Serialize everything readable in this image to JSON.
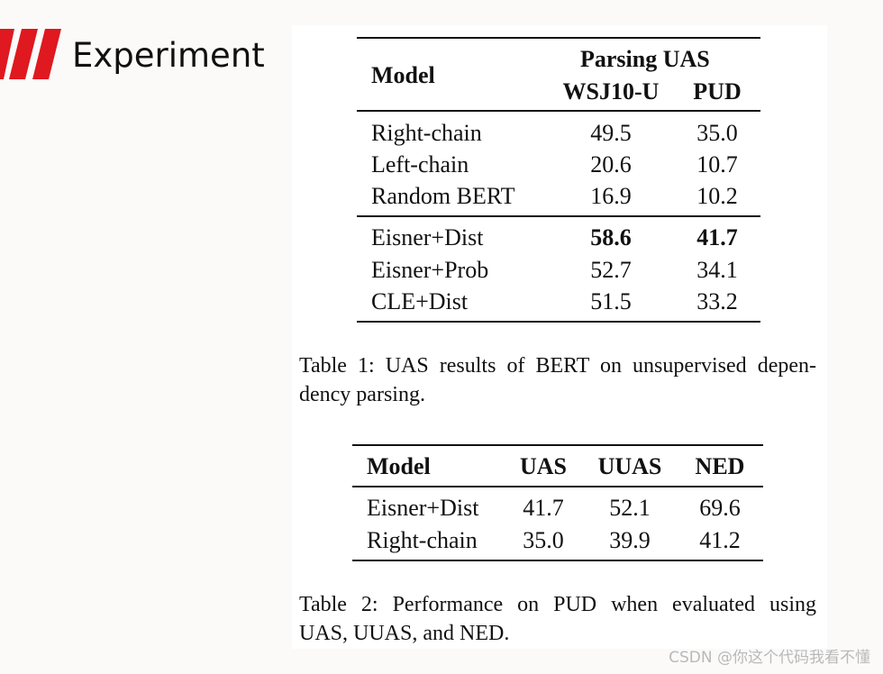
{
  "slide": {
    "title": "Experiment",
    "accent_color": "#e0181f"
  },
  "table1": {
    "header": {
      "model": "Model",
      "group": "Parsing UAS",
      "col1": "WSJ10-U",
      "col2": "PUD"
    },
    "group_a": [
      {
        "model": "Right-chain",
        "wsj": "49.5",
        "pud": "35.0"
      },
      {
        "model": "Left-chain",
        "wsj": "20.6",
        "pud": "10.7"
      },
      {
        "model": "Random BERT",
        "wsj": "16.9",
        "pud": "10.2"
      }
    ],
    "group_b": [
      {
        "model": "Eisner+Dist",
        "wsj": "58.6",
        "pud": "41.7"
      },
      {
        "model": "Eisner+Prob",
        "wsj": "52.7",
        "pud": "34.1"
      },
      {
        "model": "CLE+Dist",
        "wsj": "51.5",
        "pud": "33.2"
      }
    ],
    "caption_line1": "Table 1: UAS results of BERT on unsupervised depen-",
    "caption_line2": "dency parsing."
  },
  "table2": {
    "header": {
      "model": "Model",
      "uas": "UAS",
      "uuas": "UUAS",
      "ned": "NED"
    },
    "rows": [
      {
        "model": "Eisner+Dist",
        "uas": "41.7",
        "uuas": "52.1",
        "ned": "69.6"
      },
      {
        "model": "Right-chain",
        "uas": "35.0",
        "uuas": "39.9",
        "ned": "41.2"
      }
    ],
    "caption_line1": "Table 2: Performance on PUD when evaluated using",
    "caption_line2": "UAS, UUAS, and NED."
  },
  "watermark": "CSDN @你这个代码我看不懂"
}
